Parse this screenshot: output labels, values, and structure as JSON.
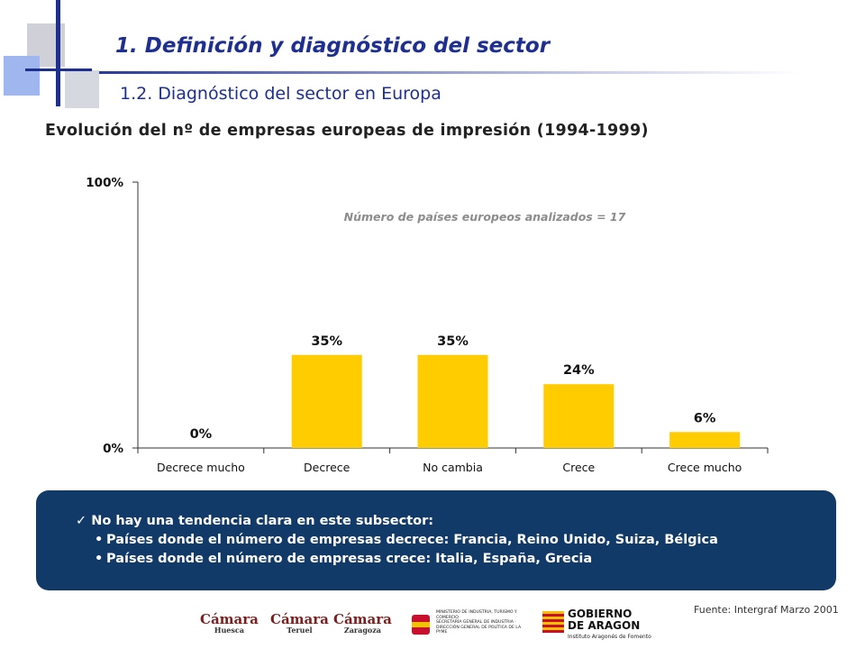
{
  "header": {
    "title": "1.  Definición y diagnóstico del sector",
    "subtitle": "1.2. Diagnóstico del sector en Europa"
  },
  "chart_data": {
    "type": "bar",
    "title": "Evolución del nº de empresas europeas de impresión   (1994-1999)",
    "annotation": "Número de países europeos analizados = 17",
    "categories": [
      "Decrece mucho",
      "Decrece",
      "No cambia",
      "Crece",
      "Crece mucho"
    ],
    "values": [
      0,
      35,
      35,
      24,
      6
    ],
    "value_labels": [
      "0%",
      "35%",
      "35%",
      "24%",
      "6%"
    ],
    "ylim": [
      0,
      100
    ],
    "yticks": [
      {
        "value": 0,
        "label": "0%"
      },
      {
        "value": 100,
        "label": "100%"
      }
    ],
    "grid": false,
    "legend": "none",
    "bar_color": "#ffcc00"
  },
  "summary": {
    "check_icon": "check-icon",
    "heading": "No hay una tendencia clara en este subsector:",
    "bullets": [
      "Países donde el número de empresas decrece: Francia, Reino Unido, Suiza, Bélgica",
      "Países donde el número de empresas crece: Italia, España, Grecia"
    ],
    "background": "#123a68"
  },
  "footer": {
    "source": "Fuente: Intergraf  Marzo 2001",
    "logos": [
      {
        "name": "Cámara",
        "sub": "Huesca"
      },
      {
        "name": "Cámara",
        "sub": "Teruel"
      },
      {
        "name": "Cámara",
        "sub": "Zaragoza"
      },
      {
        "name": "MINISTERIO DE INDUSTRIA, TURISMO Y COMERCIO",
        "sub": "SECRETARÍA GENERAL DE INDUSTRIA · DIRECCIÓN GENERAL DE POLÍTICA DE LA PYME"
      },
      {
        "name": "GOBIERNO DE ARAGON",
        "sub": "Instituto Aragonés de Fomento"
      }
    ]
  }
}
